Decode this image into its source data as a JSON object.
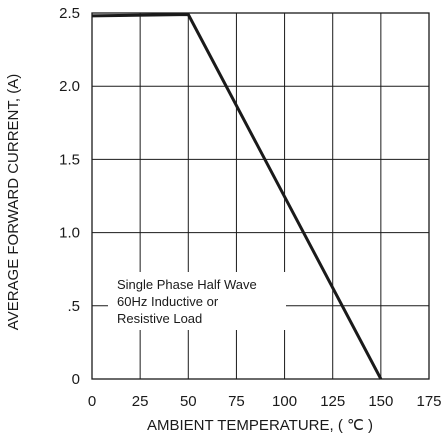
{
  "chart_data": {
    "type": "line",
    "title": "",
    "xlabel": "AMBIENT TEMPERATURE, ( ℃ )",
    "ylabel": "AVERAGE FORWARD CURRENT, (A)",
    "xlim": [
      0,
      175
    ],
    "ylim": [
      0,
      2.5
    ],
    "x_ticks": [
      0,
      25,
      50,
      75,
      100,
      125,
      150,
      175
    ],
    "x_tick_labels": [
      "0",
      "25",
      "50",
      "75",
      "100",
      "125",
      "150",
      "175"
    ],
    "y_ticks": [
      0,
      0.5,
      1.0,
      1.5,
      2.0,
      2.5
    ],
    "y_tick_labels": [
      "0",
      ".5",
      "1.0",
      "1.5",
      "2.0",
      "2.5"
    ],
    "grid": true,
    "series": [
      {
        "x": [
          0,
          50,
          150
        ],
        "y": [
          2.48,
          2.49,
          0
        ]
      }
    ],
    "annotation": [
      "Single Phase Half Wave",
      "60Hz Inductive or",
      "Resistive Load"
    ],
    "colors": {
      "line": "#1a1a1a",
      "grid": "#1a1a1a",
      "background": "#ffffff"
    }
  }
}
